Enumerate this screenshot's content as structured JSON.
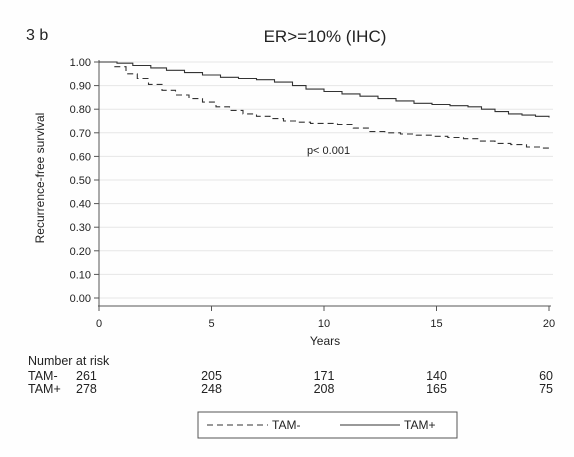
{
  "panel_label": "3 b",
  "chart_data": {
    "type": "line",
    "title": "ER>=10% (IHC)",
    "xlabel": "Years",
    "ylabel": "Recurrence-free survival",
    "xlim": [
      0,
      20
    ],
    "ylim": [
      0,
      1
    ],
    "x_ticks": [
      0,
      5,
      10,
      15,
      20
    ],
    "y_ticks": [
      0.0,
      0.1,
      0.2,
      0.3,
      0.4,
      0.5,
      0.6,
      0.7,
      0.8,
      0.9,
      1.0
    ],
    "y_tick_labels": [
      "0.00",
      "0.10",
      "0.20",
      "0.30",
      "0.40",
      "0.50",
      "0.60",
      "0.70",
      "0.80",
      "0.90",
      "1.00"
    ],
    "grid": true,
    "annotation": "p< 0.001",
    "annotation_at": [
      10.2,
      0.61
    ],
    "legend_position": "bottom",
    "series": [
      {
        "name": "TAM-",
        "style": "dashed",
        "color": "#333333",
        "x": [
          0,
          0.7,
          1.2,
          1.7,
          2.2,
          2.8,
          3.4,
          4.0,
          4.6,
          5.2,
          5.8,
          6.4,
          7.0,
          7.6,
          8.2,
          8.8,
          9.4,
          10.0,
          10.6,
          11.3,
          12.0,
          12.7,
          13.4,
          14.1,
          14.8,
          15.5,
          16.2,
          16.9,
          17.6,
          18.3,
          19.0,
          19.6,
          20.0
        ],
        "y": [
          1.0,
          0.98,
          0.95,
          0.93,
          0.905,
          0.88,
          0.86,
          0.845,
          0.83,
          0.81,
          0.795,
          0.78,
          0.77,
          0.76,
          0.75,
          0.745,
          0.74,
          0.74,
          0.735,
          0.72,
          0.705,
          0.7,
          0.695,
          0.69,
          0.685,
          0.68,
          0.675,
          0.665,
          0.655,
          0.65,
          0.64,
          0.635,
          0.635
        ]
      },
      {
        "name": "TAM+",
        "style": "solid",
        "color": "#333333",
        "x": [
          0,
          0.8,
          1.5,
          2.3,
          3.0,
          3.8,
          4.6,
          5.4,
          6.2,
          7.0,
          7.8,
          8.6,
          9.2,
          10.0,
          10.8,
          11.6,
          12.4,
          13.2,
          14.0,
          14.8,
          15.6,
          16.4,
          17.0,
          17.6,
          18.2,
          18.8,
          19.4,
          20.0
        ],
        "y": [
          1.0,
          0.995,
          0.985,
          0.975,
          0.965,
          0.955,
          0.945,
          0.935,
          0.93,
          0.925,
          0.915,
          0.9,
          0.885,
          0.875,
          0.865,
          0.855,
          0.845,
          0.835,
          0.825,
          0.82,
          0.815,
          0.81,
          0.8,
          0.79,
          0.78,
          0.775,
          0.77,
          0.765
        ]
      }
    ],
    "risk_table": {
      "heading": "Number at risk",
      "rows": [
        {
          "label": "TAM-",
          "counts": [
            "261",
            "205",
            "171",
            "140",
            "60"
          ]
        },
        {
          "label": "TAM+",
          "counts": [
            "278",
            "248",
            "208",
            "165",
            "75"
          ]
        }
      ]
    }
  }
}
